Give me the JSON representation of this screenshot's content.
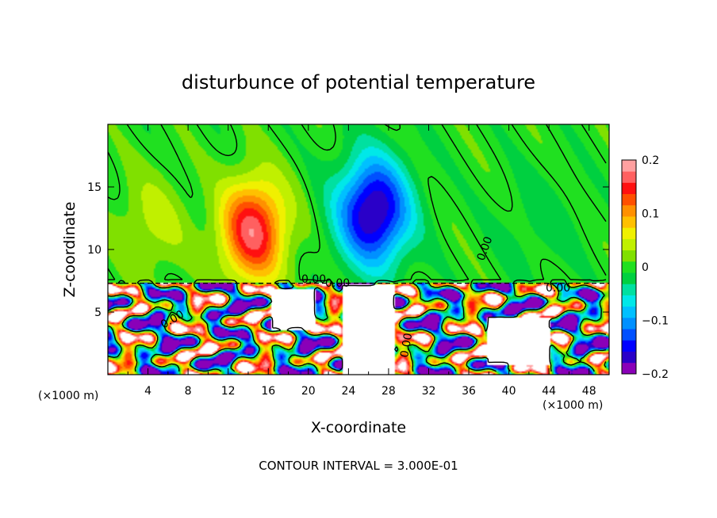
{
  "chart_data": {
    "type": "heatmap",
    "title": "disturbunce of potential temperature",
    "xlabel": "X-coordinate",
    "ylabel": "Z-coordinate",
    "x_unit_left": "(×1000 m)",
    "x_unit_right": "(×1000 m)",
    "xlim": [
      0,
      50
    ],
    "ylim": [
      0,
      20
    ],
    "x_ticks": [
      4,
      8,
      12,
      16,
      20,
      24,
      28,
      32,
      36,
      40,
      44,
      48
    ],
    "x_tick_labels": [
      "4",
      "8",
      "12",
      "16",
      "20",
      "24",
      "28",
      "32",
      "36",
      "40",
      "44",
      "48"
    ],
    "y_ticks": [
      5,
      10,
      15
    ],
    "y_tick_labels": [
      "5",
      "10",
      "15"
    ],
    "colorbar": {
      "range": [
        -0.2,
        0.2
      ],
      "ticks": [
        0.2,
        0.1,
        0,
        -0.1,
        -0.2
      ],
      "tick_labels": [
        "0.2",
        "0.1",
        "0",
        "−0.1",
        "−0.2"
      ],
      "colors": [
        "#8a00b8",
        "#2a00c8",
        "#0000ff",
        "#0050ff",
        "#0090ff",
        "#00c0ff",
        "#00e8e8",
        "#00e0a0",
        "#00d040",
        "#20e020",
        "#80e000",
        "#c0f000",
        "#f0f000",
        "#ffc000",
        "#ff9000",
        "#ff5000",
        "#ff1010",
        "#ff6060",
        "#ffa0a0"
      ]
    },
    "features": [
      {
        "name": "warm-plume",
        "x": 14.5,
        "z": 11.5,
        "value": 0.17,
        "sx": 3.2,
        "sz": 4.0
      },
      {
        "name": "cold-plume",
        "x": 26.5,
        "z": 13.0,
        "value": -0.19,
        "sx": 3.5,
        "sz": 4.2
      },
      {
        "name": "warm-left-lobe",
        "x": 4.5,
        "z": 12.0,
        "value": 0.04,
        "sx": 3.5,
        "sz": 4.0
      },
      {
        "name": "cold-right-lobe",
        "x": 43.0,
        "z": 12.0,
        "value": -0.02,
        "sx": 4.0,
        "sz": 4.0
      }
    ],
    "boundary_layer_top": 7.3,
    "contour_labels": [
      "0.00",
      "0.00",
      "0.00",
      "0.00",
      "0.00",
      "0.00"
    ],
    "annotation": "CONTOUR INTERVAL = 3.000E-01"
  }
}
